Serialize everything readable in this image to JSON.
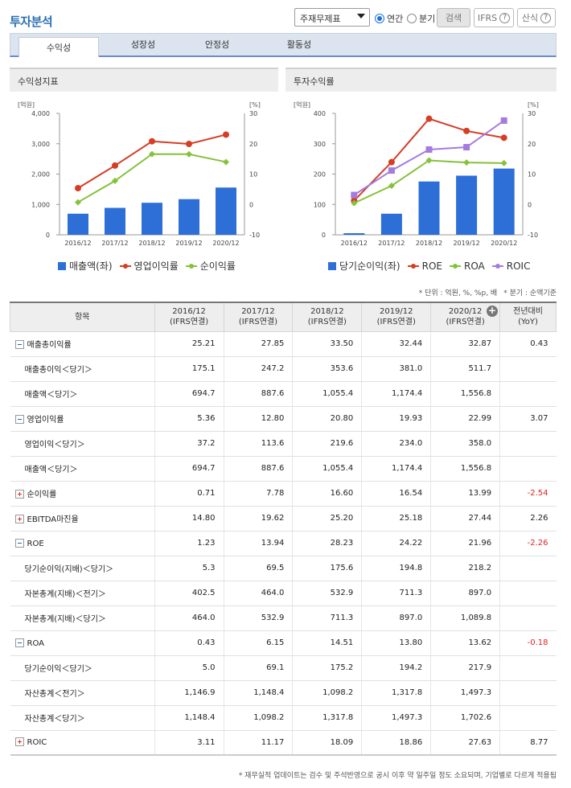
{
  "header": {
    "title": "투자분석",
    "select_value": "주재무제표",
    "radio_annual": "연간",
    "radio_quarter": "분기",
    "search_btn": "검색",
    "ifrs_btn": "IFRS",
    "formula_btn": "산식",
    "help_glyph": "?"
  },
  "tabs": [
    "수익성",
    "성장성",
    "안정성",
    "활동성"
  ],
  "colors": {
    "bar": "#2e6fd7",
    "red": "#d53d25",
    "green": "#86c13a",
    "purple": "#a47ce0"
  },
  "chart_data": [
    {
      "type": "bar+line",
      "title": "수익성지표",
      "unit_left": "[억원]",
      "unit_right": "[%]",
      "categories": [
        "2016/12",
        "2017/12",
        "2018/12",
        "2019/12",
        "2020/12"
      ],
      "ylim_left": [
        0,
        4000
      ],
      "yticks_left": [
        "0",
        "1,000",
        "2,000",
        "3,000",
        "4,000"
      ],
      "ylim_right": [
        -10,
        30
      ],
      "yticks_right": [
        "-10",
        "0",
        "10",
        "20",
        "30"
      ],
      "series": [
        {
          "name": "매출액(좌)",
          "kind": "bar",
          "axis": "left",
          "values": [
            694.7,
            887.6,
            1055.4,
            1174.4,
            1556.8
          ]
        },
        {
          "name": "영업이익률",
          "kind": "line",
          "axis": "right",
          "color": "red",
          "values": [
            5.36,
            12.8,
            20.8,
            19.93,
            22.99
          ]
        },
        {
          "name": "순이익률",
          "kind": "line",
          "axis": "right",
          "color": "green",
          "values": [
            0.71,
            7.78,
            16.6,
            16.54,
            13.99
          ]
        }
      ]
    },
    {
      "type": "bar+line",
      "title": "투자수익률",
      "unit_left": "[억원]",
      "unit_right": "[%]",
      "categories": [
        "2016/12",
        "2017/12",
        "2018/12",
        "2019/12",
        "2020/12"
      ],
      "ylim_left": [
        0,
        400
      ],
      "yticks_left": [
        "0",
        "100",
        "200",
        "300",
        "400"
      ],
      "ylim_right": [
        -10,
        30
      ],
      "yticks_right": [
        "-10",
        "0",
        "10",
        "20",
        "30"
      ],
      "series": [
        {
          "name": "당기순이익(좌)",
          "kind": "bar",
          "axis": "left",
          "values": [
            5.3,
            69.5,
            175.6,
            194.8,
            218.2
          ]
        },
        {
          "name": "ROE",
          "kind": "line",
          "axis": "right",
          "color": "red",
          "values": [
            1.23,
            13.94,
            28.23,
            24.22,
            21.96
          ]
        },
        {
          "name": "ROA",
          "kind": "line",
          "axis": "right",
          "color": "green",
          "values": [
            0.43,
            6.15,
            14.51,
            13.8,
            13.62
          ]
        },
        {
          "name": "ROIC",
          "kind": "line",
          "axis": "right",
          "color": "purple",
          "values": [
            3.11,
            11.17,
            18.09,
            18.86,
            27.63
          ]
        }
      ]
    }
  ],
  "notes": {
    "unit": "* 단위 : 억원, %, %p, 배",
    "quarter": "* 분기 : 순액기준"
  },
  "table": {
    "headers": [
      {
        "l1": "항목",
        "l2": ""
      },
      {
        "l1": "2016/12",
        "l2": "(IFRS연결)"
      },
      {
        "l1": "2017/12",
        "l2": "(IFRS연결)"
      },
      {
        "l1": "2018/12",
        "l2": "(IFRS연결)"
      },
      {
        "l1": "2019/12",
        "l2": "(IFRS연결)"
      },
      {
        "l1": "2020/12",
        "l2": "(IFRS연결)"
      },
      {
        "l1": "전년대비",
        "l2": "(YoY)"
      }
    ],
    "rows": [
      {
        "label": "매출총이익률",
        "toggle": "minus",
        "vals": [
          "25.21",
          "27.85",
          "33.50",
          "32.44",
          "32.87"
        ],
        "yoy": "0.43",
        "neg": false
      },
      {
        "label": "매출총이익＜당기＞",
        "sub": true,
        "vals": [
          "175.1",
          "247.2",
          "353.6",
          "381.0",
          "511.7"
        ],
        "yoy": ""
      },
      {
        "label": "매출액＜당기＞",
        "sub": true,
        "vals": [
          "694.7",
          "887.6",
          "1,055.4",
          "1,174.4",
          "1,556.8"
        ],
        "yoy": ""
      },
      {
        "label": "영업이익률",
        "toggle": "minus",
        "vals": [
          "5.36",
          "12.80",
          "20.80",
          "19.93",
          "22.99"
        ],
        "yoy": "3.07",
        "neg": false
      },
      {
        "label": "영업이익＜당기＞",
        "sub": true,
        "vals": [
          "37.2",
          "113.6",
          "219.6",
          "234.0",
          "358.0"
        ],
        "yoy": ""
      },
      {
        "label": "매출액＜당기＞",
        "sub": true,
        "vals": [
          "694.7",
          "887.6",
          "1,055.4",
          "1,174.4",
          "1,556.8"
        ],
        "yoy": ""
      },
      {
        "label": "순이익률",
        "toggle": "plus",
        "vals": [
          "0.71",
          "7.78",
          "16.60",
          "16.54",
          "13.99"
        ],
        "yoy": "-2.54",
        "neg": true
      },
      {
        "label": "EBITDA마진율",
        "toggle": "plus",
        "vals": [
          "14.80",
          "19.62",
          "25.20",
          "25.18",
          "27.44"
        ],
        "yoy": "2.26",
        "neg": false
      },
      {
        "label": "ROE",
        "toggle": "minus",
        "vals": [
          "1.23",
          "13.94",
          "28.23",
          "24.22",
          "21.96"
        ],
        "yoy": "-2.26",
        "neg": true
      },
      {
        "label": "당기순이익(지배)＜당기＞",
        "sub": true,
        "vals": [
          "5.3",
          "69.5",
          "175.6",
          "194.8",
          "218.2"
        ],
        "yoy": ""
      },
      {
        "label": "자본총계(지배)＜전기＞",
        "sub": true,
        "vals": [
          "402.5",
          "464.0",
          "532.9",
          "711.3",
          "897.0"
        ],
        "yoy": ""
      },
      {
        "label": "자본총계(지배)＜당기＞",
        "sub": true,
        "vals": [
          "464.0",
          "532.9",
          "711.3",
          "897.0",
          "1,089.8"
        ],
        "yoy": ""
      },
      {
        "label": "ROA",
        "toggle": "minus",
        "vals": [
          "0.43",
          "6.15",
          "14.51",
          "13.80",
          "13.62"
        ],
        "yoy": "-0.18",
        "neg": true
      },
      {
        "label": "당기순이익＜당기＞",
        "sub": true,
        "vals": [
          "5.0",
          "69.1",
          "175.2",
          "194.2",
          "217.9"
        ],
        "yoy": ""
      },
      {
        "label": "자산총계＜전기＞",
        "sub": true,
        "vals": [
          "1,146.9",
          "1,148.4",
          "1,098.2",
          "1,317.8",
          "1,497.3"
        ],
        "yoy": ""
      },
      {
        "label": "자산총계＜당기＞",
        "sub": true,
        "vals": [
          "1,148.4",
          "1,098.2",
          "1,317.8",
          "1,497.3",
          "1,702.6"
        ],
        "yoy": ""
      },
      {
        "label": "ROIC",
        "toggle": "plus",
        "vals": [
          "3.11",
          "11.17",
          "18.09",
          "18.86",
          "27.63"
        ],
        "yoy": "8.77",
        "neg": false
      }
    ]
  },
  "footer": "* 재무실적 업데이트는 검수 및 주석반영으로 공시 이후 약 일주일 정도 소요되며, 기업별로 다르게 적용됩"
}
